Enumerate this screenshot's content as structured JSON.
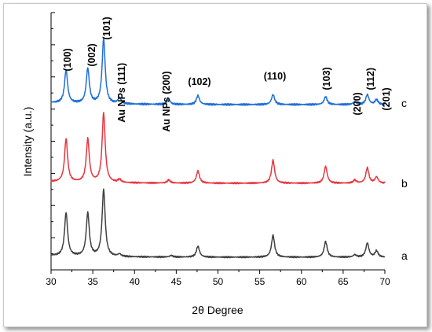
{
  "chart_data": {
    "type": "line",
    "title": "",
    "xlabel": "2θ Degree",
    "ylabel": "Intensity (a.u.)",
    "xlim": [
      30,
      70
    ],
    "x_ticks": [
      "30",
      "35",
      "40",
      "45",
      "50",
      "55",
      "60",
      "65",
      "70"
    ],
    "grid": false,
    "y_ticks_labeled": false,
    "series": [
      {
        "name": "a",
        "color": "#404040",
        "peaks": [
          [
            31.8,
            0.55
          ],
          [
            34.4,
            0.55
          ],
          [
            36.3,
            0.85
          ],
          [
            38.2,
            0.03
          ],
          [
            44.4,
            0.02
          ],
          [
            47.6,
            0.14
          ],
          [
            56.6,
            0.28
          ],
          [
            62.9,
            0.2
          ],
          [
            66.4,
            0.03
          ],
          [
            67.9,
            0.18
          ],
          [
            69.0,
            0.08
          ]
        ]
      },
      {
        "name": "b",
        "color": "#e8353f",
        "peaks": [
          [
            31.8,
            0.56
          ],
          [
            34.4,
            0.56
          ],
          [
            36.3,
            0.9
          ],
          [
            38.2,
            0.04
          ],
          [
            44.1,
            0.04
          ],
          [
            47.6,
            0.16
          ],
          [
            56.6,
            0.3
          ],
          [
            62.9,
            0.22
          ],
          [
            66.4,
            0.04
          ],
          [
            67.9,
            0.2
          ],
          [
            69.0,
            0.08
          ]
        ]
      },
      {
        "name": "c",
        "color": "#1f6fd6",
        "peaks": [
          [
            31.8,
            0.33
          ],
          [
            34.4,
            0.35
          ],
          [
            36.3,
            0.65
          ],
          [
            38.2,
            0.06
          ],
          [
            44.1,
            0.05
          ],
          [
            47.6,
            0.09
          ],
          [
            56.6,
            0.1
          ],
          [
            62.9,
            0.08
          ],
          [
            66.4,
            0.03
          ],
          [
            67.9,
            0.1
          ],
          [
            69.0,
            0.05
          ]
        ]
      }
    ],
    "annotations": [
      {
        "text": "(100)",
        "x": 31.8
      },
      {
        "text": "(002)",
        "x": 34.4
      },
      {
        "text": "(101)",
        "x": 36.3
      },
      {
        "text": "Au NPs (111)",
        "x": 38.2
      },
      {
        "text": "Au NPs (200)",
        "x": 44.1
      },
      {
        "text": "(102)",
        "x": 47.6
      },
      {
        "text": "(110)",
        "x": 56.6
      },
      {
        "text": "(103)",
        "x": 62.9
      },
      {
        "text": "(200)",
        "x": 66.4
      },
      {
        "text": "(112)",
        "x": 67.9
      },
      {
        "text": "(201)",
        "x": 69.0
      }
    ]
  }
}
